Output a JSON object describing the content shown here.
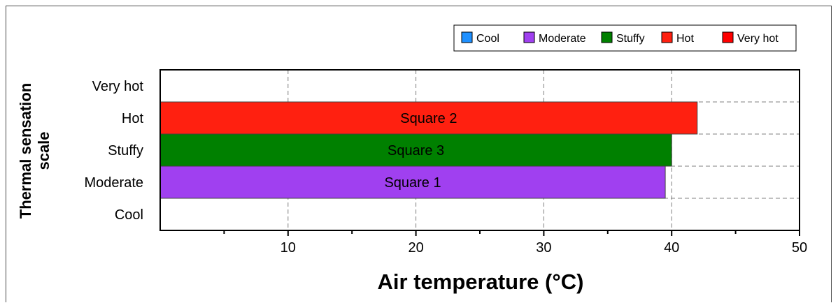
{
  "chart_data": {
    "type": "bar",
    "orientation": "horizontal",
    "title": "",
    "xlabel": "Air temperature  (°C)",
    "ylabel_lines": [
      "Thermal sensation",
      "scale"
    ],
    "xlim": [
      0,
      50
    ],
    "x_major_ticks": [
      10,
      20,
      30,
      40,
      50
    ],
    "x_minor_ticks": [
      5,
      15,
      25,
      35,
      45
    ],
    "categories": [
      "Cool",
      "Moderate",
      "Stuffy",
      "Hot",
      "Very hot"
    ],
    "bars": [
      {
        "label": "Square 1",
        "category": "Moderate",
        "value": 39.5,
        "color": "#a040f0"
      },
      {
        "label": "Square 3",
        "category": "Stuffy",
        "value": 40,
        "color": "#008000"
      },
      {
        "label": "Square 2",
        "category": "Hot",
        "value": 42,
        "color": "#ff2010"
      }
    ],
    "legend": {
      "placement": "top-right",
      "entries": [
        {
          "name": "Cool",
          "color": "#1e90ff"
        },
        {
          "name": "Moderate",
          "color": "#a040f0"
        },
        {
          "name": "Stuffy",
          "color": "#008000"
        },
        {
          "name": "Hot",
          "color": "#ff2010"
        },
        {
          "name": "Very hot",
          "color": "#ff0000"
        }
      ]
    },
    "grid": {
      "vertical": "dashed",
      "horizontal": "dashed"
    }
  }
}
